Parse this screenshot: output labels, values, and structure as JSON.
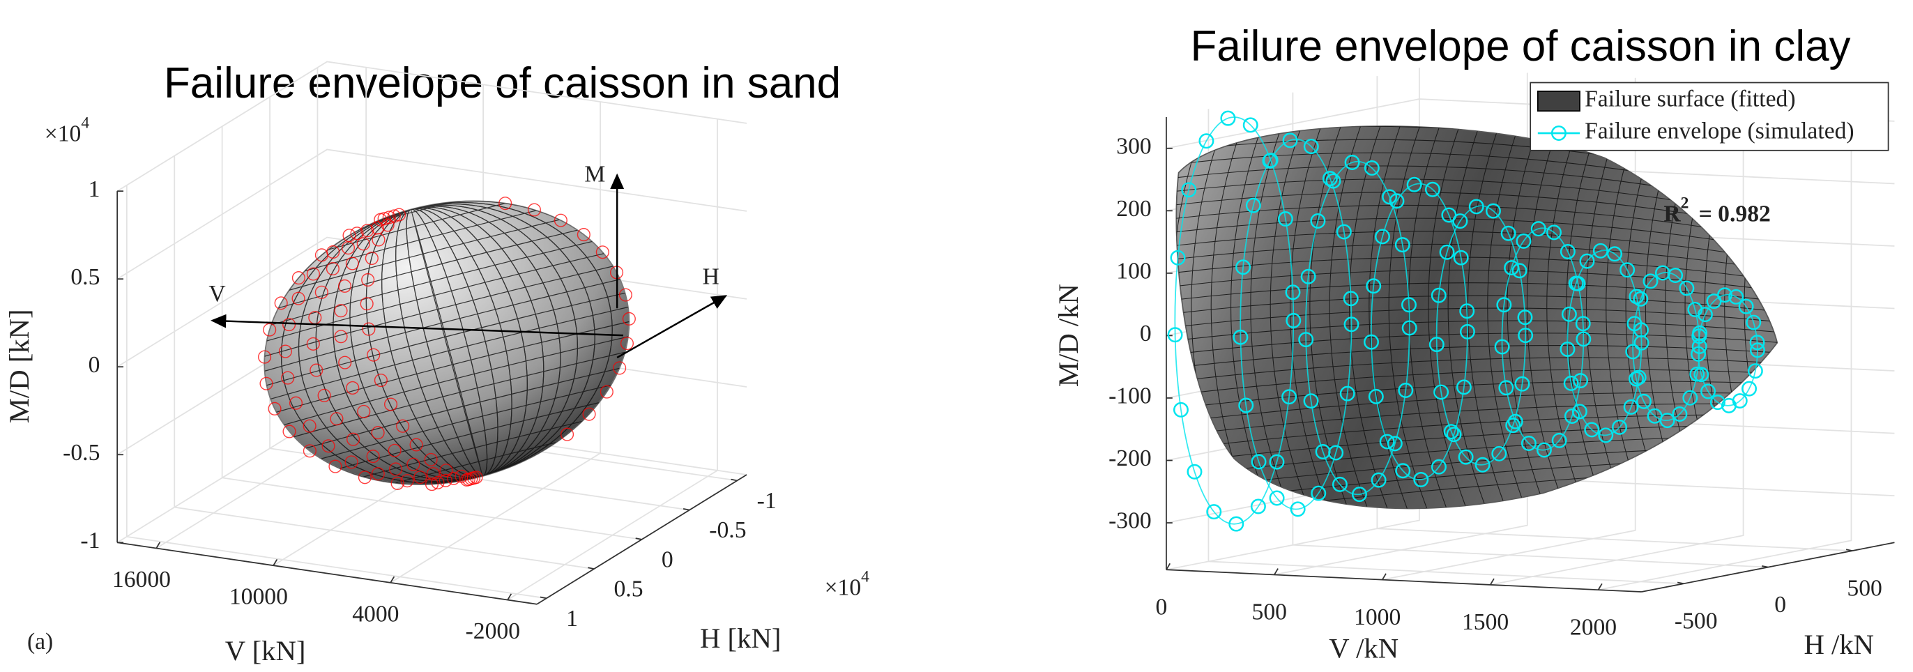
{
  "chart_data": [
    {
      "type": "surface3d",
      "title": "Failure envelope of caisson in sand",
      "panel_label": "(a)",
      "xlabel": "V [kN]",
      "ylabel": "H [kN]",
      "zlabel": "M/D [kN]",
      "xlim": [
        18000,
        -3500
      ],
      "xticks": [
        16000,
        10000,
        4000,
        -2000
      ],
      "ylim": [
        1.1,
        -1.1
      ],
      "yticks": [
        -1,
        -0.5,
        0,
        0.5,
        1
      ],
      "y_multiplier": {
        "base": "×10",
        "power": "4"
      },
      "zlim": [
        -1,
        1
      ],
      "zticks": [
        -1,
        -0.5,
        0,
        0.5,
        1
      ],
      "z_multiplier": {
        "base": "×10",
        "power": "4"
      },
      "axis_arrows": [
        "M",
        "V",
        "H"
      ],
      "grid": true,
      "surface_color": "#7a7a7a",
      "envelope_color": "#ff0000"
    },
    {
      "type": "surface3d",
      "title": "Failure envelope of caisson in clay",
      "xlabel": "V /kN",
      "ylabel": "H /kN",
      "zlabel": "M/D /kN",
      "xlim": [
        0,
        2200
      ],
      "xticks": [
        0,
        500,
        1000,
        1500,
        2000
      ],
      "ylim": [
        -750,
        750
      ],
      "yticks": [
        -500,
        0,
        500
      ],
      "zlim": [
        -375,
        350
      ],
      "zticks": [
        -300,
        -200,
        -100,
        0,
        100,
        200,
        300
      ],
      "grid": true,
      "surface_color": "#5a5a5a",
      "envelope_color": "#00e5ee",
      "legend": [
        {
          "name": "Failure surface (fitted)",
          "color": "#404040"
        },
        {
          "name": "Failure envelope (simulated)",
          "color": "#00e5ee"
        }
      ],
      "legend_position": "upper right",
      "annotation": {
        "base": "R",
        "power": "2",
        "text": "= 0.982"
      }
    }
  ]
}
